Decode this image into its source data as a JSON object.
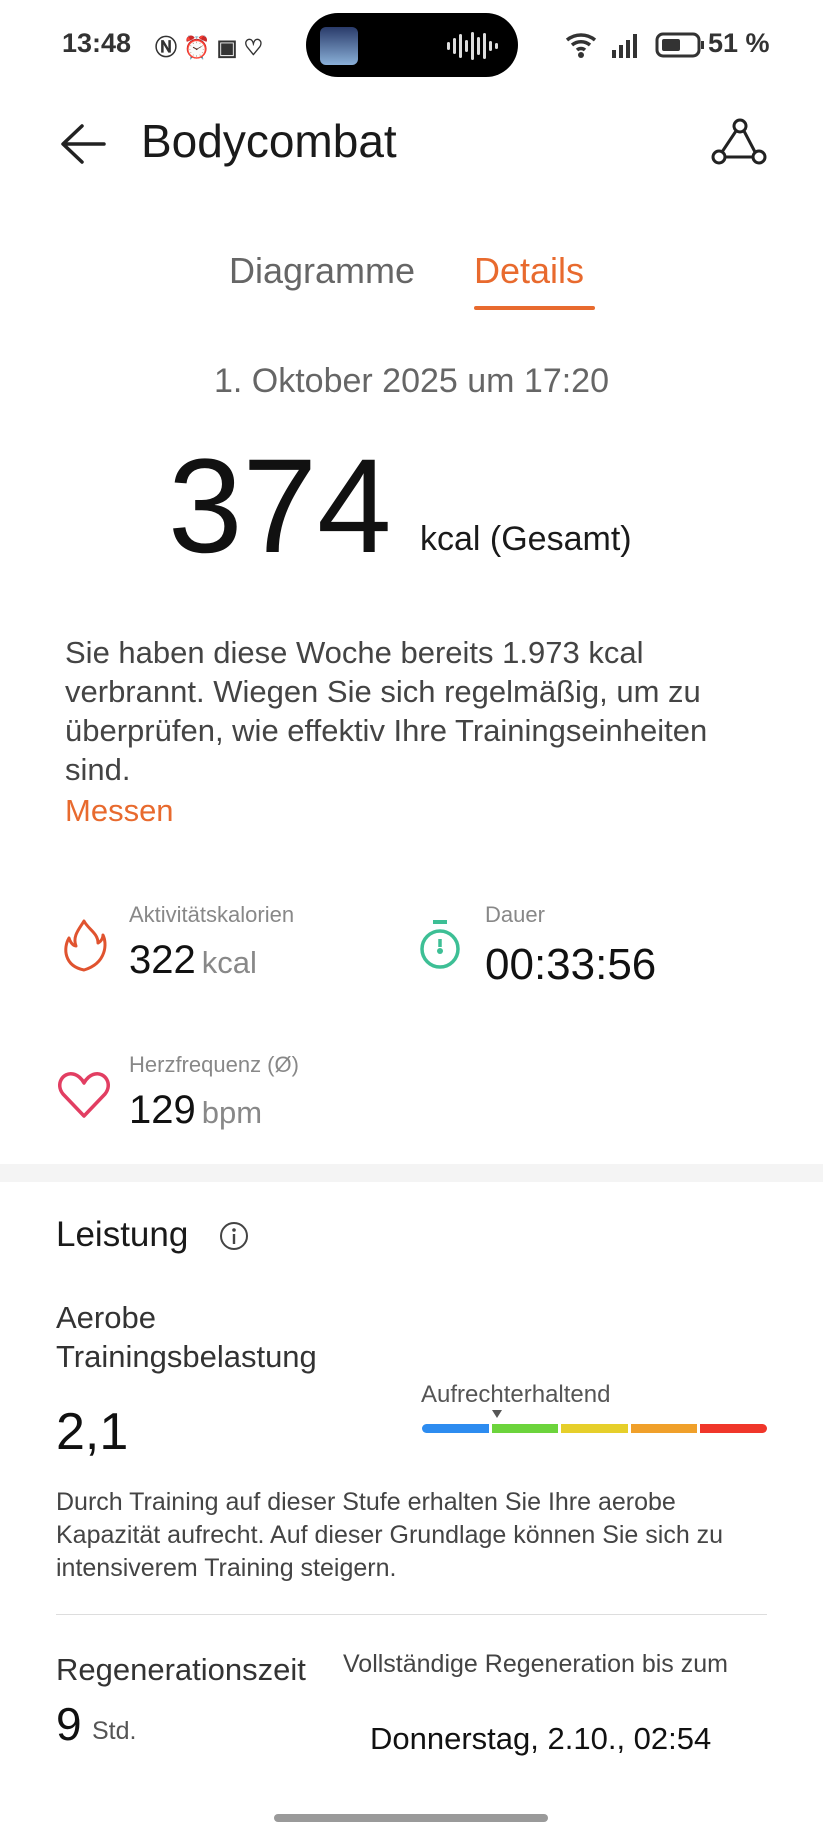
{
  "status_bar": {
    "time": "13:48",
    "battery": "51 %",
    "icons": [
      "nfc-icon",
      "alarm-icon",
      "outlook-icon",
      "health-icon",
      "wifi-icon",
      "signal-icon",
      "battery-icon"
    ]
  },
  "header": {
    "title": "Bodycombat",
    "back_icon": "arrow-left-icon",
    "share_icon": "route-icon"
  },
  "tabs": [
    {
      "label": "Diagramme",
      "active": false
    },
    {
      "label": "Details",
      "active": true
    }
  ],
  "accent": "#e86a2e",
  "summary": {
    "date": "1. Oktober 2025 um 17:20",
    "total": "374",
    "total_unit": "kcal (Gesamt)",
    "message": "Sie haben diese Woche bereits 1.973 kcal verbrannt. Wiegen Sie sich regelmäßig, um zu überprüfen, wie effektiv Ihre Trainingseinheiten sind.",
    "link": "Messen"
  },
  "stats": [
    {
      "label": "Aktivitätskalorien",
      "value": "322",
      "unit": "kcal",
      "icon": "flame-icon",
      "color": "#e0532f"
    },
    {
      "label": "Dauer",
      "value": "00:33:56",
      "unit": "",
      "icon": "stopwatch-icon",
      "color": "#3dbf95"
    },
    {
      "label": "Herzfrequenz (Ø)",
      "value": "129",
      "unit": "bpm",
      "icon": "heart-icon",
      "color": "#e23e62"
    }
  ],
  "performance": {
    "title": "Leistung",
    "info_icon": "info-icon",
    "aerobic": {
      "label_line1": "Aerobe",
      "label_line2": "Trainingsbelastung",
      "value": "2,1",
      "level": "Aufrechterhaltend",
      "level_index": 2,
      "scale_colors": [
        "#2d8cf0",
        "#6cd43c",
        "#e6cf2a",
        "#f0a02a",
        "#f0362a"
      ],
      "description": "Durch Training auf dieser Stufe erhalten Sie Ihre aerobe Kapazität aufrecht. Auf dieser Grundlage können Sie sich zu intensiverem Training steigern."
    },
    "recovery": {
      "label": "Regenerationszeit",
      "value": "9",
      "unit": "Std.",
      "until_label": "Vollständige Regeneration bis zum",
      "until_value": "Donnerstag, 2.10., 02:54"
    }
  }
}
